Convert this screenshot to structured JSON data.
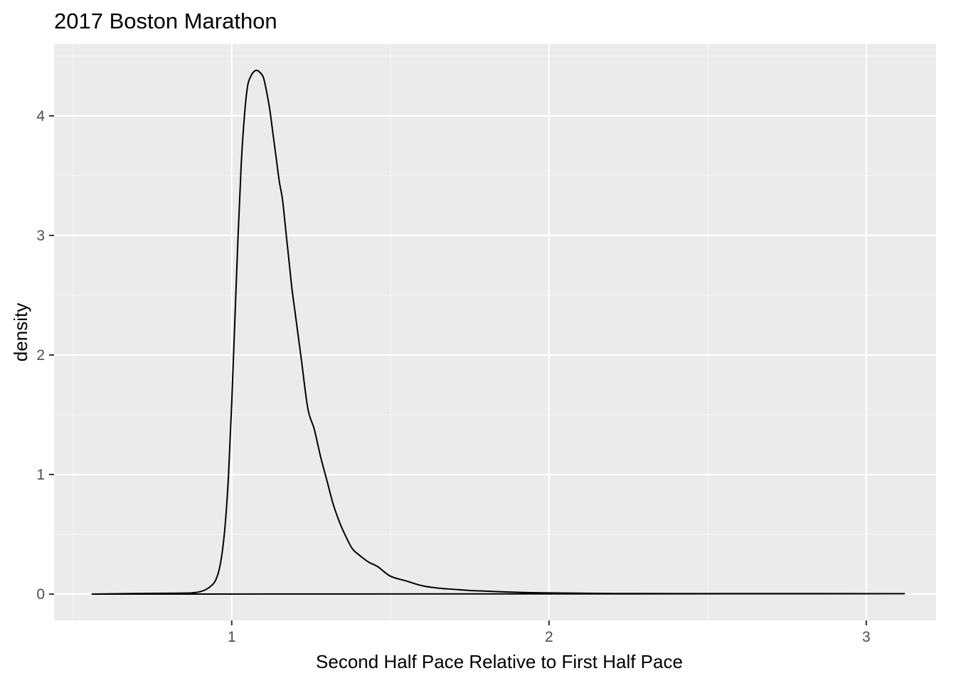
{
  "colors": {
    "panel_background": "#EBEBEB",
    "grid_major": "#FFFFFF",
    "grid_minor": "#F5F5F5",
    "curve": "#000000",
    "tick_text": "#4D4D4D",
    "tick_mark": "#333333"
  },
  "chart_data": {
    "type": "area",
    "title": "2017 Boston Marathon",
    "xlabel": "Second Half Pace Relative to First Half Pace",
    "ylabel": "density",
    "xlim": [
      0.44,
      3.22
    ],
    "ylim": [
      -0.22,
      4.6
    ],
    "x_ticks": [
      {
        "value": 1,
        "label": "1"
      },
      {
        "value": 2,
        "label": "2"
      },
      {
        "value": 3,
        "label": "3"
      }
    ],
    "y_ticks": [
      {
        "value": 0,
        "label": "0"
      },
      {
        "value": 1,
        "label": "1"
      },
      {
        "value": 2,
        "label": "2"
      },
      {
        "value": 3,
        "label": "3"
      },
      {
        "value": 4,
        "label": "4"
      }
    ],
    "x_minor_ticks": [
      0.5,
      1.5,
      2.5
    ],
    "y_minor_ticks": [
      0.5,
      1.5,
      2.5,
      3.5,
      4.5
    ],
    "grid": true,
    "legend": "none",
    "series": [
      {
        "x": [
          0.56,
          0.7,
          0.85,
          0.88,
          0.9,
          0.92,
          0.94,
          0.95,
          0.96,
          0.97,
          0.98,
          0.99,
          1.0,
          1.01,
          1.02,
          1.03,
          1.04,
          1.05,
          1.06,
          1.07,
          1.08,
          1.09,
          1.1,
          1.11,
          1.12,
          1.13,
          1.14,
          1.15,
          1.16,
          1.17,
          1.18,
          1.19,
          1.2,
          1.22,
          1.24,
          1.26,
          1.28,
          1.3,
          1.32,
          1.34,
          1.36,
          1.38,
          1.4,
          1.43,
          1.46,
          1.5,
          1.55,
          1.6,
          1.65,
          1.7,
          1.75,
          1.8,
          1.9,
          2.0,
          2.2,
          2.5,
          2.8,
          3.12
        ],
        "y": [
          0.0,
          0.005,
          0.008,
          0.012,
          0.02,
          0.04,
          0.08,
          0.12,
          0.2,
          0.35,
          0.6,
          1.0,
          1.6,
          2.3,
          3.0,
          3.6,
          4.0,
          4.25,
          4.33,
          4.37,
          4.38,
          4.36,
          4.32,
          4.2,
          4.05,
          3.85,
          3.65,
          3.45,
          3.3,
          3.05,
          2.8,
          2.55,
          2.35,
          1.95,
          1.55,
          1.38,
          1.15,
          0.95,
          0.75,
          0.6,
          0.48,
          0.38,
          0.33,
          0.27,
          0.23,
          0.15,
          0.11,
          0.07,
          0.05,
          0.04,
          0.03,
          0.025,
          0.015,
          0.01,
          0.005,
          0.004,
          0.004,
          0.003
        ]
      }
    ]
  }
}
